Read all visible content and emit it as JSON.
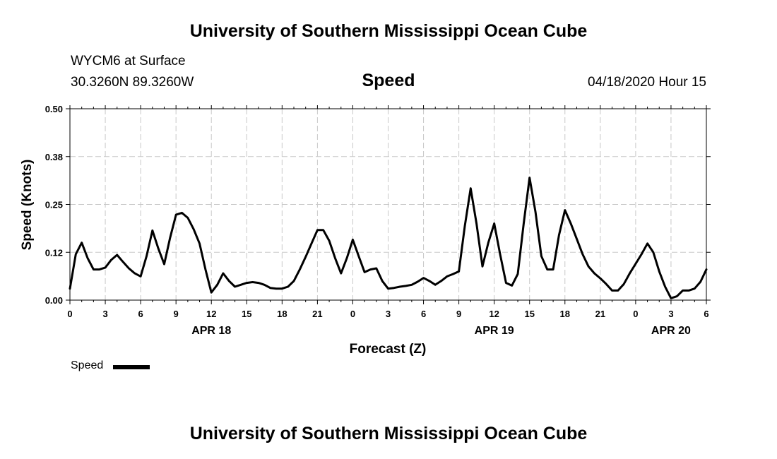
{
  "page": {
    "title_top": "University of Southern Mississippi Ocean Cube",
    "title_bottom": "University of Southern Mississippi Ocean Cube",
    "station": "WYCM6 at Surface",
    "coordinates": "30.3260N 89.3260W",
    "variable": "Speed",
    "datetime": "04/18/2020 Hour 15"
  },
  "legend": {
    "label": "Speed",
    "color": "#000000"
  },
  "chart_data": {
    "type": "line",
    "title": "Speed",
    "xlabel": "Forecast (Z)",
    "ylabel": "Speed (Knots)",
    "ylim": [
      0,
      0.5
    ],
    "xlim": [
      0,
      54
    ],
    "grid": true,
    "y_ticks": [
      {
        "value": 0.0,
        "label": "0.00"
      },
      {
        "value": 0.125,
        "label": "0.12"
      },
      {
        "value": 0.25,
        "label": "0.25"
      },
      {
        "value": 0.375,
        "label": "0.38"
      },
      {
        "value": 0.5,
        "label": "0.50"
      }
    ],
    "x_ticks": [
      {
        "x": 0,
        "label": "0"
      },
      {
        "x": 3,
        "label": "3"
      },
      {
        "x": 6,
        "label": "6"
      },
      {
        "x": 9,
        "label": "9"
      },
      {
        "x": 12,
        "label": "12"
      },
      {
        "x": 15,
        "label": "15"
      },
      {
        "x": 18,
        "label": "18"
      },
      {
        "x": 21,
        "label": "21"
      },
      {
        "x": 24,
        "label": "0"
      },
      {
        "x": 27,
        "label": "3"
      },
      {
        "x": 30,
        "label": "6"
      },
      {
        "x": 33,
        "label": "9"
      },
      {
        "x": 36,
        "label": "12"
      },
      {
        "x": 39,
        "label": "15"
      },
      {
        "x": 42,
        "label": "18"
      },
      {
        "x": 45,
        "label": "21"
      },
      {
        "x": 48,
        "label": "0"
      },
      {
        "x": 51,
        "label": "3"
      },
      {
        "x": 54,
        "label": "6"
      }
    ],
    "date_labels": [
      {
        "x": 12,
        "label": "APR 18"
      },
      {
        "x": 36,
        "label": "APR 19"
      },
      {
        "x": 51,
        "label": "APR 20"
      }
    ],
    "series": [
      {
        "name": "Speed",
        "color": "#000000",
        "points": [
          [
            0,
            0.03
          ],
          [
            0.5,
            0.12
          ],
          [
            1,
            0.15
          ],
          [
            1.5,
            0.11
          ],
          [
            2,
            0.08
          ],
          [
            2.5,
            0.08
          ],
          [
            3,
            0.085
          ],
          [
            3.5,
            0.105
          ],
          [
            4,
            0.118
          ],
          [
            4.5,
            0.1
          ],
          [
            5,
            0.083
          ],
          [
            5.5,
            0.07
          ],
          [
            6,
            0.062
          ],
          [
            6.5,
            0.115
          ],
          [
            7,
            0.182
          ],
          [
            7.5,
            0.135
          ],
          [
            8,
            0.094
          ],
          [
            8.5,
            0.163
          ],
          [
            9,
            0.223
          ],
          [
            9.5,
            0.228
          ],
          [
            10,
            0.215
          ],
          [
            10.5,
            0.185
          ],
          [
            11,
            0.148
          ],
          [
            11.5,
            0.08
          ],
          [
            12,
            0.02
          ],
          [
            12.5,
            0.04
          ],
          [
            13,
            0.07
          ],
          [
            13.5,
            0.05
          ],
          [
            14,
            0.035
          ],
          [
            14.5,
            0.04
          ],
          [
            15,
            0.045
          ],
          [
            15.5,
            0.047
          ],
          [
            16,
            0.045
          ],
          [
            16.5,
            0.04
          ],
          [
            17,
            0.032
          ],
          [
            17.5,
            0.03
          ],
          [
            18,
            0.03
          ],
          [
            18.5,
            0.035
          ],
          [
            19,
            0.05
          ],
          [
            19.5,
            0.08
          ],
          [
            20,
            0.113
          ],
          [
            20.5,
            0.148
          ],
          [
            21,
            0.183
          ],
          [
            21.5,
            0.183
          ],
          [
            22,
            0.155
          ],
          [
            22.5,
            0.11
          ],
          [
            23,
            0.07
          ],
          [
            23.5,
            0.11
          ],
          [
            24,
            0.158
          ],
          [
            24.5,
            0.115
          ],
          [
            25,
            0.073
          ],
          [
            25.5,
            0.08
          ],
          [
            26,
            0.083
          ],
          [
            26.5,
            0.05
          ],
          [
            27,
            0.03
          ],
          [
            27.5,
            0.032
          ],
          [
            28,
            0.035
          ],
          [
            28.5,
            0.037
          ],
          [
            29,
            0.04
          ],
          [
            29.5,
            0.048
          ],
          [
            30,
            0.058
          ],
          [
            30.5,
            0.05
          ],
          [
            31,
            0.04
          ],
          [
            31.5,
            0.05
          ],
          [
            32,
            0.062
          ],
          [
            32.5,
            0.068
          ],
          [
            33,
            0.075
          ],
          [
            33.5,
            0.193
          ],
          [
            34,
            0.292
          ],
          [
            34.5,
            0.2
          ],
          [
            35,
            0.088
          ],
          [
            35.5,
            0.15
          ],
          [
            36,
            0.2
          ],
          [
            36.5,
            0.12
          ],
          [
            37,
            0.045
          ],
          [
            37.5,
            0.038
          ],
          [
            38,
            0.068
          ],
          [
            38.5,
            0.2
          ],
          [
            39,
            0.32
          ],
          [
            39.5,
            0.23
          ],
          [
            40,
            0.115
          ],
          [
            40.5,
            0.08
          ],
          [
            41,
            0.08
          ],
          [
            41.5,
            0.17
          ],
          [
            42,
            0.235
          ],
          [
            42.5,
            0.2
          ],
          [
            43,
            0.16
          ],
          [
            43.5,
            0.12
          ],
          [
            44,
            0.088
          ],
          [
            44.5,
            0.07
          ],
          [
            45,
            0.057
          ],
          [
            45.5,
            0.042
          ],
          [
            46,
            0.025
          ],
          [
            46.5,
            0.025
          ],
          [
            47,
            0.042
          ],
          [
            47.5,
            0.07
          ],
          [
            48,
            0.095
          ],
          [
            48.5,
            0.12
          ],
          [
            49,
            0.148
          ],
          [
            49.5,
            0.125
          ],
          [
            50,
            0.075
          ],
          [
            50.5,
            0.035
          ],
          [
            51,
            0.005
          ],
          [
            51.5,
            0.01
          ],
          [
            52,
            0.025
          ],
          [
            52.5,
            0.025
          ],
          [
            53,
            0.03
          ],
          [
            53.5,
            0.048
          ],
          [
            54,
            0.08
          ]
        ]
      }
    ]
  }
}
